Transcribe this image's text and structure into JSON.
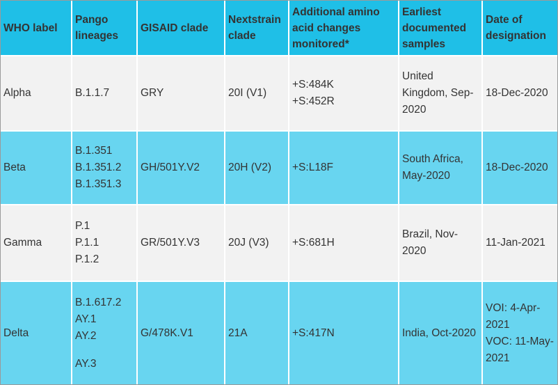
{
  "table": {
    "header": [
      "WHO label",
      "Pango lineages",
      "GISAID clade",
      "Nextstrain clade",
      "Additional amino acid changes monitored*",
      "Earliest documented samples",
      "Date of designation"
    ],
    "rows": [
      {
        "who": "Alpha",
        "pango": [
          "B.1.1.7"
        ],
        "gisaid": "GRY",
        "nextstrain": "20I (V1)",
        "changes": [
          "+S:484K",
          "+S:452R"
        ],
        "earliest": "United Kingdom, Sep-2020",
        "date": [
          "18-Dec-2020"
        ]
      },
      {
        "who": "Beta",
        "pango": [
          "B.1.351",
          "B.1.351.2",
          "B.1.351.3"
        ],
        "gisaid": "GH/501Y.V2",
        "nextstrain": "20H (V2)",
        "changes": [
          "+S:L18F"
        ],
        "earliest": "South Africa, May-2020",
        "date": [
          "18-Dec-2020"
        ]
      },
      {
        "who": "Gamma",
        "pango": [
          "P.1",
          "P.1.1",
          "P.1.2"
        ],
        "gisaid": "GR/501Y.V3",
        "nextstrain": "20J (V3)",
        "changes": [
          "+S:681H"
        ],
        "earliest": "Brazil, Nov-2020",
        "date": [
          "11-Jan-2021"
        ]
      },
      {
        "who": "Delta",
        "pango": [
          "B.1.617.2",
          "AY.1",
          "AY.2",
          "AY.3"
        ],
        "gisaid": "G/478K.V1",
        "nextstrain": "21A",
        "changes": [
          "+S:417N"
        ],
        "earliest": "India, Oct-2020",
        "date": [
          "VOI: 4-Apr-2021",
          "VOC: 11-May-2021"
        ]
      }
    ]
  }
}
